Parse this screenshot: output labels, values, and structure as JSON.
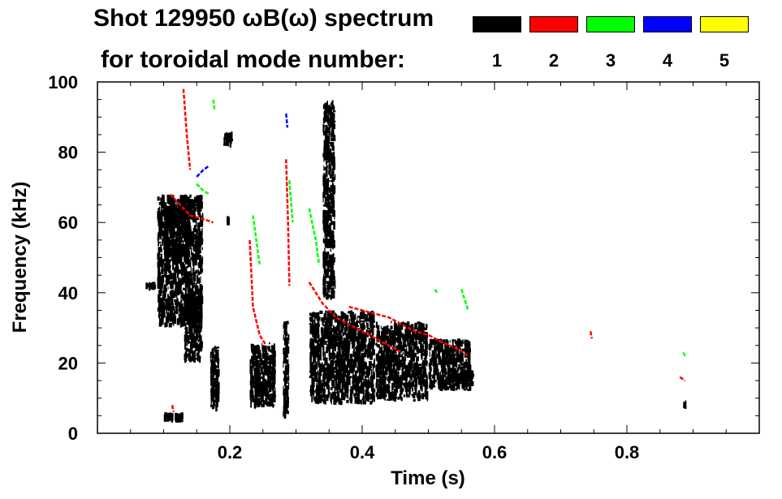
{
  "title_line1": "Shot 129950 ωB(ω) spectrum",
  "title_line2": "for toroidal mode number:",
  "legend": [
    {
      "label": "1",
      "color": "#000000"
    },
    {
      "label": "2",
      "color": "#ff0000"
    },
    {
      "label": "3",
      "color": "#00ff00"
    },
    {
      "label": "4",
      "color": "#0000ff"
    },
    {
      "label": "5",
      "color": "#ffff00"
    }
  ],
  "chart_data": {
    "type": "heatmap",
    "title": "Shot 129950 ωB(ω) spectrum",
    "xlabel": "Time (s)",
    "ylabel": "Frequency (kHz)",
    "xlim": [
      0.0,
      1.0
    ],
    "ylim": [
      0,
      100
    ],
    "xticks": [
      0.2,
      0.4,
      0.6,
      0.8
    ],
    "xtick_labels": [
      "0.2",
      "0.4",
      "0.6",
      "0.8"
    ],
    "yticks": [
      0,
      20,
      40,
      60,
      80,
      100
    ],
    "ytick_labels": [
      "0",
      "20",
      "40",
      "60",
      "80",
      "100"
    ],
    "grid": false,
    "series": [
      {
        "name": "n=1",
        "color": "#000000",
        "regions": [
          {
            "t0": 0.07,
            "t1": 0.09,
            "f0": 41,
            "f1": 43
          },
          {
            "t0": 0.09,
            "t1": 0.16,
            "f0": 30,
            "f1": 68
          },
          {
            "t0": 0.1,
            "t1": 0.14,
            "f0": 50,
            "f1": 66
          },
          {
            "t0": 0.1,
            "t1": 0.13,
            "f0": 3,
            "f1": 6
          },
          {
            "t0": 0.13,
            "t1": 0.16,
            "f0": 20,
            "f1": 40
          },
          {
            "t0": 0.17,
            "t1": 0.185,
            "f0": 6,
            "f1": 25
          },
          {
            "t0": 0.19,
            "t1": 0.205,
            "f0": 81,
            "f1": 86
          },
          {
            "t0": 0.195,
            "t1": 0.2,
            "f0": 59,
            "f1": 62
          },
          {
            "t0": 0.23,
            "t1": 0.27,
            "f0": 7,
            "f1": 26
          },
          {
            "t0": 0.24,
            "t1": 0.26,
            "f0": 10,
            "f1": 15
          },
          {
            "t0": 0.28,
            "t1": 0.29,
            "f0": 4,
            "f1": 32
          },
          {
            "t0": 0.32,
            "t1": 0.42,
            "f0": 8,
            "f1": 35
          },
          {
            "t0": 0.34,
            "t1": 0.36,
            "f0": 38,
            "f1": 95
          },
          {
            "t0": 0.42,
            "t1": 0.5,
            "f0": 9,
            "f1": 32
          },
          {
            "t0": 0.5,
            "t1": 0.565,
            "f0": 12,
            "f1": 27
          },
          {
            "t0": 0.55,
            "t1": 0.57,
            "f0": 13,
            "f1": 18
          },
          {
            "t0": 0.885,
            "t1": 0.89,
            "f0": 7,
            "f1": 9
          }
        ]
      },
      {
        "name": "n=2",
        "color": "#ff0000",
        "tracks": [
          {
            "points": [
              [
                0.11,
                68
              ],
              [
                0.12,
                66
              ],
              [
                0.13,
                64
              ],
              [
                0.14,
                62
              ],
              [
                0.16,
                61
              ],
              [
                0.175,
                60
              ]
            ]
          },
          {
            "points": [
              [
                0.13,
                98
              ],
              [
                0.135,
                85
              ],
              [
                0.14,
                75
              ]
            ]
          },
          {
            "points": [
              [
                0.23,
                55
              ],
              [
                0.235,
                36
              ],
              [
                0.245,
                28
              ],
              [
                0.255,
                25
              ]
            ]
          },
          {
            "points": [
              [
                0.285,
                78
              ],
              [
                0.288,
                60
              ],
              [
                0.29,
                42
              ]
            ]
          },
          {
            "points": [
              [
                0.32,
                43
              ],
              [
                0.34,
                37
              ],
              [
                0.36,
                33
              ],
              [
                0.38,
                31
              ],
              [
                0.4,
                29
              ],
              [
                0.42,
                27
              ],
              [
                0.44,
                25
              ],
              [
                0.46,
                23
              ]
            ]
          },
          {
            "points": [
              [
                0.38,
                36
              ],
              [
                0.4,
                35
              ],
              [
                0.42,
                34
              ],
              [
                0.44,
                33
              ],
              [
                0.46,
                31
              ],
              [
                0.48,
                29
              ],
              [
                0.5,
                28
              ],
              [
                0.52,
                26
              ],
              [
                0.545,
                24
              ],
              [
                0.56,
                22
              ]
            ]
          },
          {
            "points": [
              [
                0.745,
                29
              ],
              [
                0.747,
                27
              ]
            ]
          },
          {
            "points": [
              [
                0.88,
                16
              ],
              [
                0.888,
                15
              ]
            ]
          },
          {
            "points": [
              [
                0.113,
                8
              ],
              [
                0.115,
                6
              ]
            ]
          }
        ]
      },
      {
        "name": "n=3",
        "color": "#00ff00",
        "tracks": [
          {
            "points": [
              [
                0.15,
                71
              ],
              [
                0.16,
                69
              ],
              [
                0.17,
                68
              ]
            ]
          },
          {
            "points": [
              [
                0.175,
                95
              ],
              [
                0.177,
                92
              ]
            ]
          },
          {
            "points": [
              [
                0.235,
                62
              ],
              [
                0.24,
                55
              ],
              [
                0.245,
                48
              ]
            ]
          },
          {
            "points": [
              [
                0.29,
                72
              ],
              [
                0.295,
                60
              ]
            ]
          },
          {
            "points": [
              [
                0.32,
                64
              ],
              [
                0.33,
                55
              ],
              [
                0.335,
                48
              ]
            ]
          },
          {
            "points": [
              [
                0.51,
                41
              ],
              [
                0.513,
                40
              ]
            ]
          },
          {
            "points": [
              [
                0.55,
                41
              ],
              [
                0.555,
                38
              ],
              [
                0.56,
                35
              ]
            ]
          },
          {
            "points": [
              [
                0.885,
                23
              ],
              [
                0.888,
                22
              ]
            ]
          }
        ]
      },
      {
        "name": "n=4",
        "color": "#0000ff",
        "tracks": [
          {
            "points": [
              [
                0.15,
                73
              ],
              [
                0.16,
                75
              ],
              [
                0.168,
                76
              ]
            ]
          },
          {
            "points": [
              [
                0.285,
                91
              ],
              [
                0.287,
                87
              ]
            ]
          }
        ]
      },
      {
        "name": "n=5",
        "color": "#ffff00",
        "tracks": []
      }
    ]
  }
}
